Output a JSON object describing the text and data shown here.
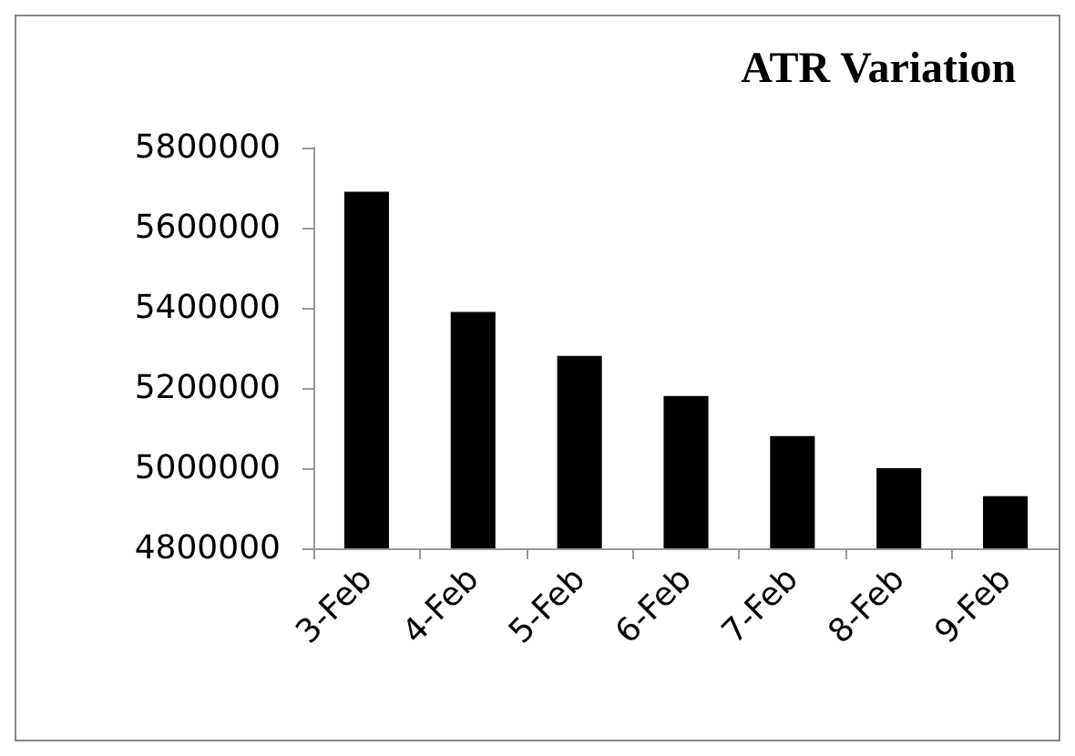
{
  "chart_data": {
    "type": "bar",
    "title": "ATR Variation",
    "categories": [
      "3-Feb",
      "4-Feb",
      "5-Feb",
      "6-Feb",
      "7-Feb",
      "8-Feb",
      "9-Feb"
    ],
    "values": [
      5690000,
      5390000,
      5280000,
      5180000,
      5080000,
      5000000,
      4930000
    ],
    "color": "#000000",
    "ylim": [
      4800000,
      5800000
    ],
    "yticks": [
      4800000,
      5000000,
      5200000,
      5400000,
      5600000,
      5800000
    ],
    "grid": false
  }
}
